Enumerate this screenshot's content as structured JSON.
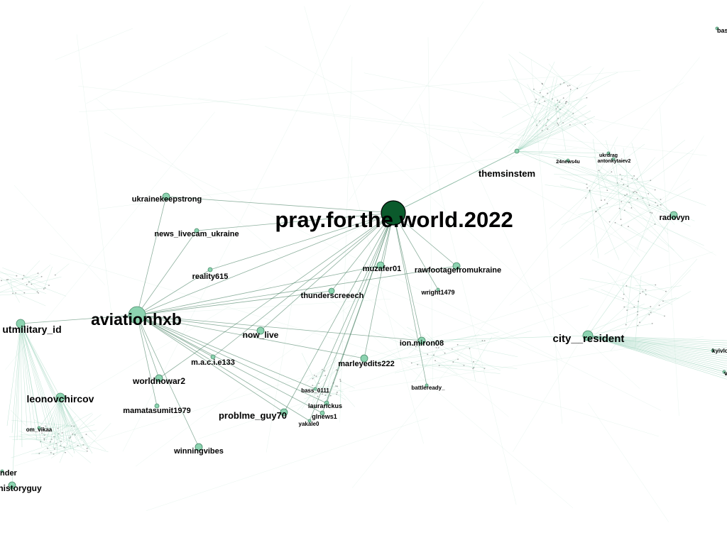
{
  "colors": {
    "background": "#ffffff",
    "edge": "#7fc8a9",
    "edge_dark": "#2f6f4f",
    "node_fill": "#8cd3b0",
    "node_stroke": "#4a8a6a",
    "hub_fill": "#0b5a2c"
  },
  "nodes": [
    {
      "id": "pray",
      "label": "pray.for.the.world.2022",
      "kind": "hub"
    },
    {
      "id": "aviation",
      "label": "aviationhxb",
      "kind": "major"
    },
    {
      "id": "city",
      "label": "city__resident",
      "kind": "major"
    },
    {
      "id": "them",
      "label": "themsinstem",
      "kind": "major"
    },
    {
      "id": "utmil",
      "label": "utmilitary_id",
      "kind": "major"
    },
    {
      "id": "leonov",
      "label": "leonovchircov",
      "kind": "major"
    },
    {
      "id": "ukrstrong",
      "label": "ukrainekeepstrong",
      "kind": "normal"
    },
    {
      "id": "newslive",
      "label": "news_livecam_ukraine",
      "kind": "normal"
    },
    {
      "id": "reality",
      "label": "reality615",
      "kind": "normal"
    },
    {
      "id": "muzafer",
      "label": "muzafer01",
      "kind": "normal"
    },
    {
      "id": "rawfoot",
      "label": "rawfootagefromukraine",
      "kind": "normal"
    },
    {
      "id": "thunder",
      "label": "thunderscreeech",
      "kind": "normal"
    },
    {
      "id": "wright",
      "label": "wright1479",
      "kind": "small"
    },
    {
      "id": "nowlive",
      "label": "now_live",
      "kind": "normal"
    },
    {
      "id": "ionmiron",
      "label": "ion.miron08",
      "kind": "normal"
    },
    {
      "id": "marley",
      "label": "marleyedits222",
      "kind": "normal"
    },
    {
      "id": "macie",
      "label": "m.a.c.i.e133",
      "kind": "normal"
    },
    {
      "id": "worldno",
      "label": "worldnowar2",
      "kind": "normal"
    },
    {
      "id": "mamata",
      "label": "mamatasumit1979",
      "kind": "normal"
    },
    {
      "id": "probl",
      "label": "problme_guy70",
      "kind": "normal"
    },
    {
      "id": "winning",
      "label": "winningvibes",
      "kind": "normal"
    },
    {
      "id": "history",
      "label": "historyguy",
      "kind": "normal"
    },
    {
      "id": "radov",
      "label": "radovyn",
      "kind": "normal"
    },
    {
      "id": "battle",
      "label": "battleready_",
      "kind": "small"
    },
    {
      "id": "bass",
      "label": "bass_0111",
      "kind": "small"
    },
    {
      "id": "laurar",
      "label": "laurarickus",
      "kind": "small"
    },
    {
      "id": "glnews",
      "label": "glnews1",
      "kind": "small"
    },
    {
      "id": "yakale",
      "label": "yakale0",
      "kind": "small"
    },
    {
      "id": "news4u",
      "label": "24news4u",
      "kind": "small"
    },
    {
      "id": "ukrdrag",
      "label": "ukrdrag",
      "kind": "small"
    },
    {
      "id": "antonk",
      "label": "antonkytaiev2",
      "kind": "small"
    },
    {
      "id": "omvika",
      "label": "om_vikaa",
      "kind": "small"
    },
    {
      "id": "kyivlove",
      "label": "kyivlov",
      "kind": "small"
    },
    {
      "id": "visegrad",
      "label": "visegrad",
      "kind": "small"
    },
    {
      "id": "bas",
      "label": "bas",
      "kind": "small"
    },
    {
      "id": "nder",
      "label": "nder",
      "kind": "small"
    }
  ]
}
